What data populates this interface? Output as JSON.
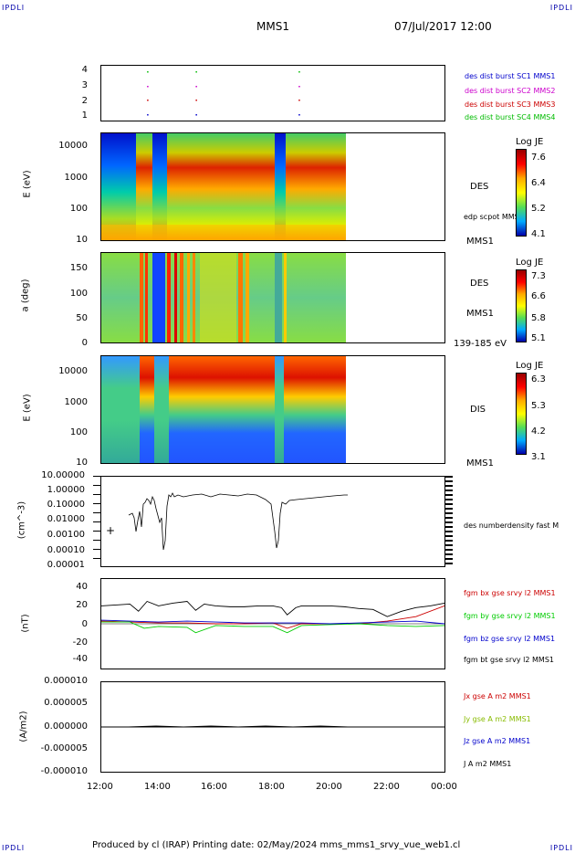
{
  "corners": {
    "tl": "IPDLI",
    "tr": "IPDLI",
    "bl": "IPDLI",
    "br": "IPDLI"
  },
  "header": {
    "title": "MMS1",
    "date": "07/Jul/2017 12:00"
  },
  "footer": {
    "text": "Produced by cl (IRAP)   Printing date: 02/May/2024   mms_mms1_srvy_vue_web1.cl"
  },
  "colors": {
    "sc1": "#0000cc",
    "sc2": "#cc00cc",
    "sc3": "#cc0000",
    "sc4": "#00bb00",
    "bx": "#cc0000",
    "by": "#00cc00",
    "bz": "#0000cc",
    "bt": "#000000"
  },
  "chart_data": [
    {
      "type": "scatter",
      "panel": "burst",
      "yticks": [
        "4",
        "3",
        "2",
        "1"
      ],
      "legend": [
        "des dist burst SC1 MMS1",
        "des dist burst SC2 MMS2",
        "des dist burst SC3 MMS3",
        "des dist burst SC4 MMS4"
      ],
      "burst_times_hours": [
        13.6,
        15.3,
        18.9
      ]
    },
    {
      "type": "heatmap",
      "panel": "des-energy",
      "ylabel": "E (eV)",
      "yticks": [
        "10000",
        "1000",
        "100",
        "10"
      ],
      "right_label": "DES",
      "right_sublabel": "edp scpot MMS1",
      "right_bottom": "MMS1",
      "colorbar": {
        "title": "Log JE",
        "ticks": [
          "7.6",
          "6.4",
          "5.2",
          "4.1"
        ]
      }
    },
    {
      "type": "heatmap",
      "panel": "des-pitch",
      "ylabel": "a (deg)",
      "yticks": [
        "150",
        "100",
        "50",
        "0"
      ],
      "right_label": "DES",
      "right_sublabel": "MMS1",
      "right_bottom": "139-185 eV",
      "colorbar": {
        "title": "Log JE",
        "ticks": [
          "7.3",
          "6.6",
          "5.8",
          "5.1"
        ]
      }
    },
    {
      "type": "heatmap",
      "panel": "dis-energy",
      "ylabel": "E (eV)",
      "yticks": [
        "10000",
        "1000",
        "100",
        "10"
      ],
      "right_label": "DIS",
      "right_bottom": "MMS1",
      "colorbar": {
        "title": "Log JE",
        "ticks": [
          "6.3",
          "5.3",
          "4.2",
          "3.1"
        ]
      }
    },
    {
      "type": "line",
      "panel": "density",
      "ylabel": "(cm^-3)",
      "yticks": [
        "10.00000",
        "1.00000",
        "0.10000",
        "0.01000",
        "0.00100",
        "0.00010",
        "0.00001"
      ],
      "legend": [
        "des numberdensity fast M"
      ],
      "marker": "+"
    },
    {
      "type": "line",
      "panel": "fgm",
      "ylabel": "(nT)",
      "yticks": [
        "40",
        "20",
        "0",
        "-20",
        "-40"
      ],
      "ylim": [
        -50,
        50
      ],
      "legend": [
        "fgm bx gse srvy l2 MMS1",
        "fgm by gse srvy l2 MMS1",
        "fgm bz gse srvy l2 MMS1",
        "fgm bt gse srvy l2 MMS1"
      ],
      "series": [
        {
          "name": "fgm bt gse srvy l2 MMS1",
          "x": [
            12,
            12.5,
            13,
            13.3,
            13.6,
            14,
            14.5,
            15,
            15.3,
            15.6,
            16,
            16.5,
            17,
            17.5,
            18,
            18.3,
            18.5,
            18.8,
            19,
            19.5,
            20,
            20.5,
            21,
            21.5,
            22,
            22.5,
            23,
            23.5,
            24
          ],
          "values": [
            20,
            21,
            22,
            14,
            25,
            20,
            23,
            25,
            15,
            22,
            20,
            19,
            19,
            20,
            20,
            18,
            10,
            18,
            20,
            20,
            20,
            19,
            17,
            16,
            8,
            14,
            18,
            20,
            23
          ]
        },
        {
          "name": "fgm bx gse srvy l2 MMS1",
          "x": [
            12,
            13,
            14,
            15,
            16,
            17,
            18,
            18.5,
            19,
            20,
            21,
            22,
            23,
            24
          ],
          "values": [
            3,
            2,
            1,
            1,
            0,
            0,
            1,
            -5,
            0,
            0,
            0,
            3,
            8,
            20
          ]
        },
        {
          "name": "fgm by gse srvy l2 MMS1",
          "x": [
            12,
            13,
            13.5,
            14,
            15,
            15.3,
            16,
            17,
            18,
            18.5,
            19,
            20,
            21,
            22,
            23,
            24
          ],
          "values": [
            2,
            2,
            -5,
            -3,
            -4,
            -10,
            -2,
            -3,
            -3,
            -10,
            -2,
            -1,
            0,
            -2,
            -3,
            -2
          ]
        },
        {
          "name": "fgm bz gse srvy l2 MMS1",
          "x": [
            12,
            13,
            14,
            15,
            16,
            17,
            18,
            19,
            20,
            21,
            22,
            23,
            24
          ],
          "values": [
            4,
            3,
            2,
            3,
            2,
            1,
            1,
            1,
            0,
            1,
            2,
            3,
            0
          ]
        }
      ]
    },
    {
      "type": "line",
      "panel": "current",
      "ylabel": "(A/m2)",
      "yticks": [
        "0.000010",
        "0.000005",
        "0.000000",
        "-0.000005",
        "-0.000010"
      ],
      "ylim": [
        -1e-05,
        1e-05
      ],
      "legend": [
        "Jx gse A m2 MMS1",
        "Jy gse A m2 MMS1",
        "Jz gse A m2 MMS1",
        "J A m2 MMS1"
      ],
      "xticks": [
        "12:00",
        "14:00",
        "16:00",
        "18:00",
        "20:00",
        "22:00",
        "00:00"
      ]
    }
  ]
}
